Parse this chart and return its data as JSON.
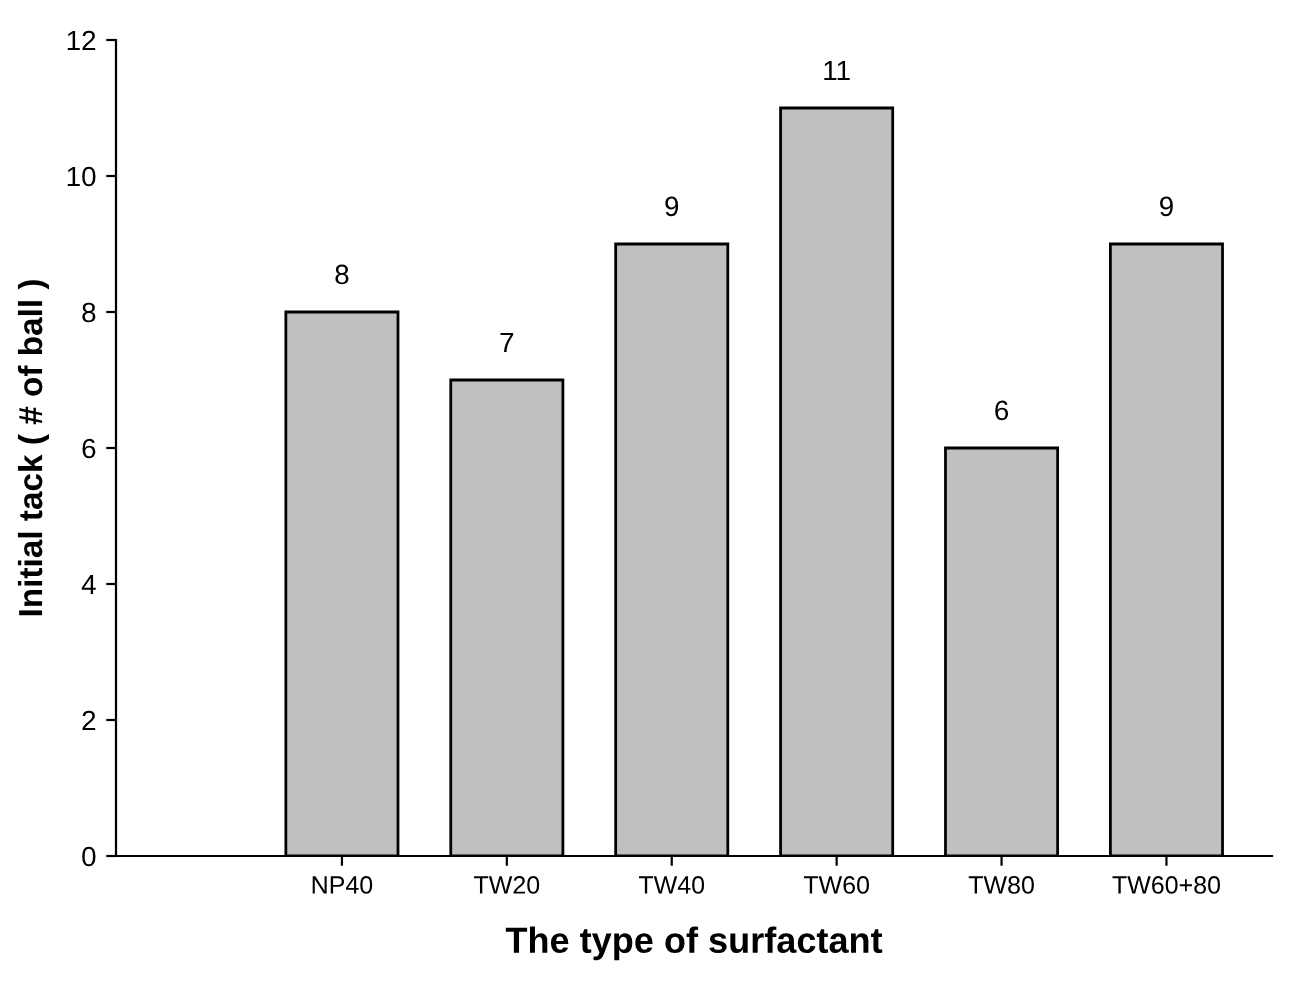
{
  "chart_data": {
    "type": "bar",
    "xlabel": "The type of surfactant",
    "ylabel": "Initial tack ( # of ball )",
    "categories": [
      "NP40",
      "TW20",
      "TW40",
      "TW60",
      "TW80",
      "TW60+80"
    ],
    "values": [
      8,
      7,
      9,
      11,
      6,
      9
    ],
    "color": "#c0c0c0",
    "ylim": [
      0,
      12
    ],
    "yticks": [
      0,
      2,
      4,
      6,
      8,
      10,
      12
    ],
    "grid": false,
    "data_labels": true
  }
}
